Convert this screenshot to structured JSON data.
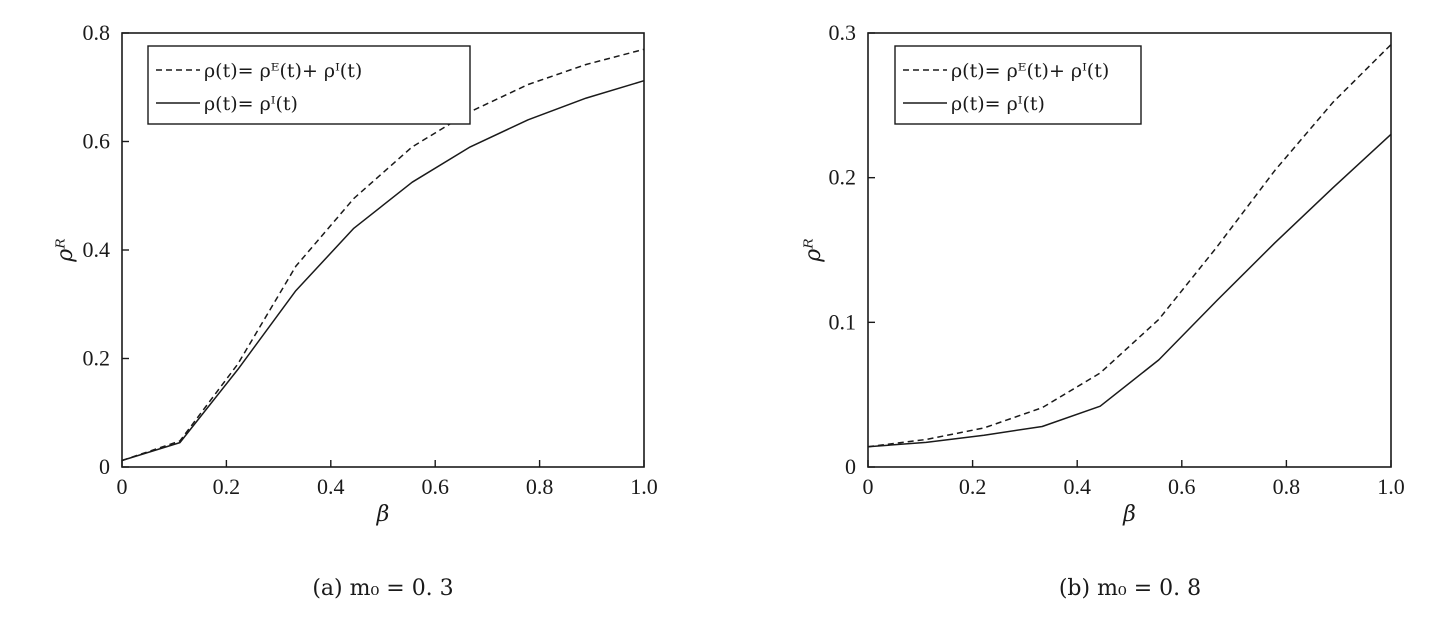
{
  "chart_data": [
    {
      "type": "line",
      "caption": "(a) m₀ = 0. 3",
      "xlabel": "β",
      "ylabel": "ρᴿ",
      "xlim": [
        0,
        1.0
      ],
      "ylim": [
        0,
        0.8
      ],
      "xticks": [
        "0",
        "0.2",
        "0.4",
        "0.6",
        "0.8",
        "1.0"
      ],
      "yticks": [
        "0",
        "0.2",
        "0.4",
        "0.6",
        "0.8"
      ],
      "legend_position": "top-left",
      "series": [
        {
          "name": "ρ(t)= ρᴱ(t)+ ρᴵ(t)",
          "style": "dashed",
          "x": [
            0,
            0.111,
            0.222,
            0.333,
            0.444,
            0.556,
            0.667,
            0.778,
            0.889,
            1.0
          ],
          "y": [
            0.012,
            0.048,
            0.19,
            0.37,
            0.495,
            0.59,
            0.655,
            0.705,
            0.742,
            0.77
          ]
        },
        {
          "name": "ρ(t)= ρᴵ(t)",
          "style": "solid",
          "x": [
            0,
            0.111,
            0.222,
            0.333,
            0.444,
            0.556,
            0.667,
            0.778,
            0.889,
            1.0
          ],
          "y": [
            0.012,
            0.045,
            0.18,
            0.325,
            0.44,
            0.525,
            0.59,
            0.64,
            0.68,
            0.712
          ]
        }
      ]
    },
    {
      "type": "line",
      "caption": "(b) m₀ = 0. 8",
      "xlabel": "β",
      "ylabel": "ρᴿ",
      "xlim": [
        0,
        1.0
      ],
      "ylim": [
        0,
        0.3
      ],
      "xticks": [
        "0",
        "0.2",
        "0.4",
        "0.6",
        "0.8",
        "1.0"
      ],
      "yticks": [
        "0",
        "0.1",
        "0.2",
        "0.3"
      ],
      "legend_position": "top-left",
      "series": [
        {
          "name": "ρ(t)= ρᴱ(t)+ ρᴵ(t)",
          "style": "dashed",
          "x": [
            0,
            0.111,
            0.222,
            0.333,
            0.444,
            0.556,
            0.667,
            0.778,
            0.889,
            1.0
          ],
          "y": [
            0.014,
            0.019,
            0.027,
            0.041,
            0.065,
            0.102,
            0.152,
            0.205,
            0.252,
            0.292
          ]
        },
        {
          "name": "ρ(t)= ρᴵ(t)",
          "style": "solid",
          "x": [
            0,
            0.111,
            0.222,
            0.333,
            0.444,
            0.556,
            0.667,
            0.778,
            0.889,
            1.0
          ],
          "y": [
            0.014,
            0.017,
            0.022,
            0.028,
            0.042,
            0.074,
            0.115,
            0.155,
            0.193,
            0.23
          ]
        }
      ]
    }
  ],
  "colors": {
    "line": "#1a1a1a",
    "background": "#ffffff"
  }
}
